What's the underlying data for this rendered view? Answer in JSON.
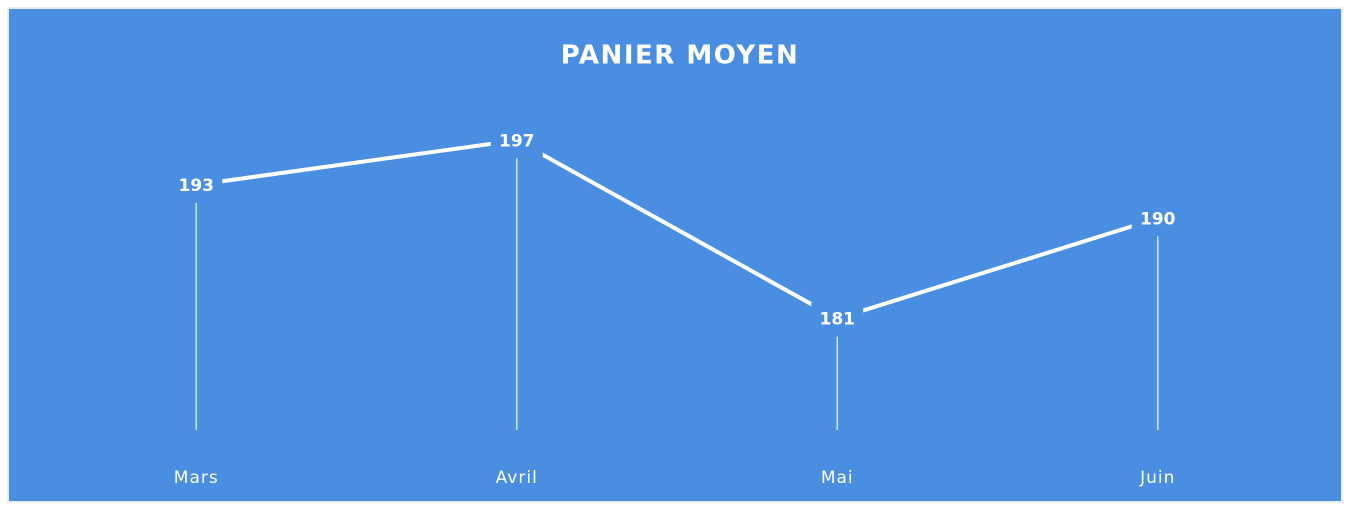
{
  "chart_data": {
    "type": "line",
    "title": "PANIER MOYEN",
    "categories": [
      "Mars",
      "Avril",
      "Mai",
      "Juin"
    ],
    "values": [
      193,
      197,
      181,
      190
    ],
    "color": "#ffffff",
    "ylim": [
      171,
      206
    ],
    "drop_lines": true
  }
}
